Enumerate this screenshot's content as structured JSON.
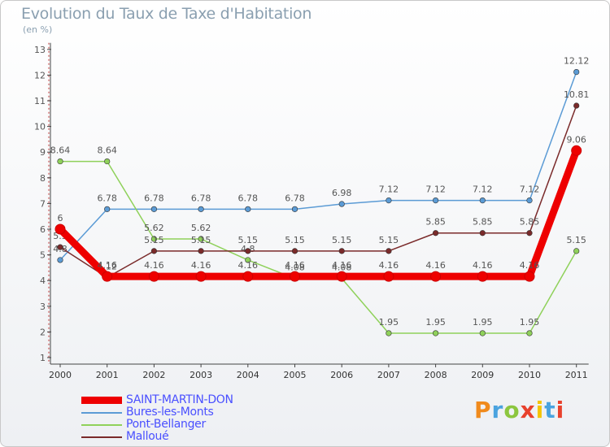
{
  "header": {
    "title": "Evolution du Taux de Taxe d'Habitation",
    "subtitle": "(en %)"
  },
  "logo": {
    "text": "Proxiti",
    "colors": [
      "#f08a1c",
      "#4aa3df",
      "#8cc63f",
      "#e8412c",
      "#f5c400",
      "#4aa3df",
      "#e8412c"
    ]
  },
  "chart_data": {
    "type": "line",
    "title": "Evolution du Taux de Taxe d'Habitation",
    "ylabel": "(en %)",
    "xlabel": "",
    "x": [
      2000,
      2001,
      2002,
      2003,
      2004,
      2005,
      2006,
      2007,
      2008,
      2009,
      2010,
      2011
    ],
    "ylim": [
      1,
      13
    ],
    "yticks": [
      1,
      2,
      3,
      4,
      5,
      6,
      7,
      8,
      9,
      10,
      11,
      12,
      13
    ],
    "grid": false,
    "legend": "bottom-left",
    "series": [
      {
        "name": "Bures-les-Monts",
        "color": "#5b9bd5",
        "values": [
          4.8,
          6.78,
          6.78,
          6.78,
          6.78,
          6.78,
          6.98,
          7.12,
          7.12,
          7.12,
          7.12,
          12.12
        ],
        "labels": [
          "4.8",
          "6.78",
          "6.78",
          "6.78",
          "6.78",
          "6.78",
          "6.98",
          "7.12",
          "7.12",
          "7.12",
          "7.12",
          "12.12"
        ]
      },
      {
        "name": "Pont-Bellanger",
        "color": "#8fd15a",
        "values": [
          8.64,
          8.64,
          5.62,
          5.62,
          4.8,
          4.08,
          4.08,
          1.95,
          1.95,
          1.95,
          1.95,
          5.15
        ],
        "labels": [
          "8.64",
          "8.64",
          "5.62",
          "5.62",
          "4.8",
          "4.08",
          "4.08",
          "1.95",
          "1.95",
          "1.95",
          "1.95",
          "5.15"
        ]
      },
      {
        "name": "Malloué",
        "color": "#7a2a2a",
        "values": [
          5.3,
          4.12,
          5.15,
          5.15,
          5.15,
          5.15,
          5.15,
          5.15,
          5.85,
          5.85,
          5.85,
          10.81
        ],
        "labels": [
          "5.3",
          "4.12",
          "5.15",
          "5.15",
          "5.15",
          "5.15",
          "5.15",
          "5.15",
          "5.85",
          "5.85",
          "5.85",
          "10.81"
        ]
      },
      {
        "name": "SAINT-MARTIN-DON",
        "color": "#ee0000",
        "values": [
          6,
          4.16,
          4.16,
          4.16,
          4.16,
          4.16,
          4.16,
          4.16,
          4.16,
          4.16,
          4.16,
          9.06
        ],
        "labels": [
          "6",
          "4.16",
          "4.16",
          "4.16",
          "4.16",
          "4.16",
          "4.16",
          "4.16",
          "4.16",
          "4.16",
          "4.16",
          "9.06"
        ]
      }
    ],
    "legend_order": [
      "SAINT-MARTIN-DON",
      "Bures-les-Monts",
      "Pont-Bellanger",
      "Malloué"
    ]
  }
}
